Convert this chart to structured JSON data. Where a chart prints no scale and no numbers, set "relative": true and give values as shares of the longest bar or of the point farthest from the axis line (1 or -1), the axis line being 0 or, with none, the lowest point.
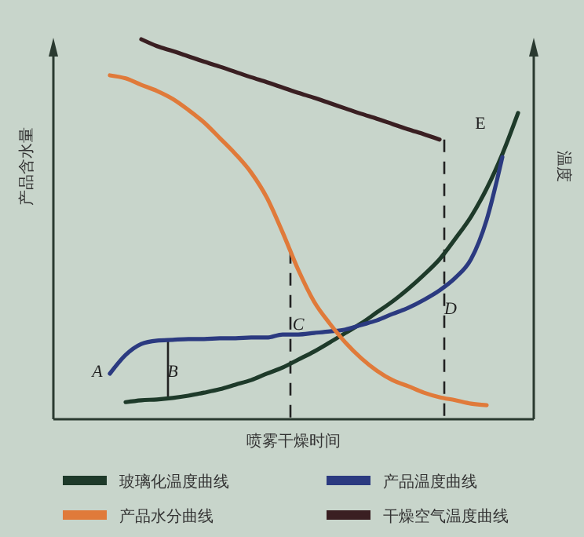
{
  "chart_data": {
    "type": "line",
    "relative": true,
    "xlabel": "喷雾干燥时间",
    "ylabel": "产品含水量",
    "y2label": "温度",
    "legend": "bottom",
    "grid": false,
    "marker": "none",
    "line_style": "solid",
    "categories": [
      null,
      null,
      null,
      null,
      null,
      null,
      null,
      null,
      null,
      null,
      null,
      null,
      null,
      null,
      null,
      null,
      null,
      null,
      null,
      null,
      null,
      null,
      null,
      null,
      null,
      null,
      null
    ],
    "series": [
      {
        "name": "玻璃化温度曲线",
        "color": "#1e3a2a",
        "values": [
          null,
          0.045,
          0.05,
          0.052,
          0.056,
          0.062,
          0.07,
          0.079,
          0.091,
          0.103,
          0.12,
          0.136,
          0.157,
          0.178,
          0.202,
          0.227,
          0.252,
          0.281,
          0.31,
          0.343,
          0.38,
          0.421,
          0.475,
          0.533,
          0.607,
          0.698,
          0.806
        ]
      },
      {
        "name": "产品温度曲线",
        "color": "#2b3a80",
        "values": [
          0.12,
          0.169,
          0.198,
          0.207,
          0.209,
          0.211,
          0.211,
          0.213,
          0.213,
          0.215,
          0.215,
          0.223,
          0.223,
          0.227,
          0.231,
          0.236,
          0.248,
          0.26,
          0.277,
          0.293,
          0.314,
          0.339,
          0.372,
          0.421,
          0.525,
          0.69,
          null
        ]
      },
      {
        "name": "产品水分曲线",
        "color": "#e07a3a",
        "values": [
          0.905,
          0.897,
          0.88,
          0.864,
          0.843,
          0.814,
          0.781,
          0.74,
          0.698,
          0.649,
          0.583,
          0.492,
          0.393,
          0.31,
          0.252,
          0.202,
          0.161,
          0.128,
          0.103,
          0.087,
          0.07,
          0.058,
          0.05,
          0.041,
          0.037,
          null,
          null
        ]
      },
      {
        "name": "干燥空气温度曲线",
        "color": "#3a1f22",
        "values": [
          null,
          null,
          1.0,
          0.982,
          0.969,
          0.955,
          0.941,
          0.928,
          0.914,
          0.9,
          0.887,
          0.873,
          0.859,
          0.846,
          0.832,
          0.818,
          0.804,
          0.791,
          0.777,
          0.763,
          0.75,
          0.736,
          null,
          null,
          null,
          null,
          null
        ]
      }
    ],
    "annotations": [
      "A",
      "B",
      "C",
      "D",
      "E"
    ]
  }
}
